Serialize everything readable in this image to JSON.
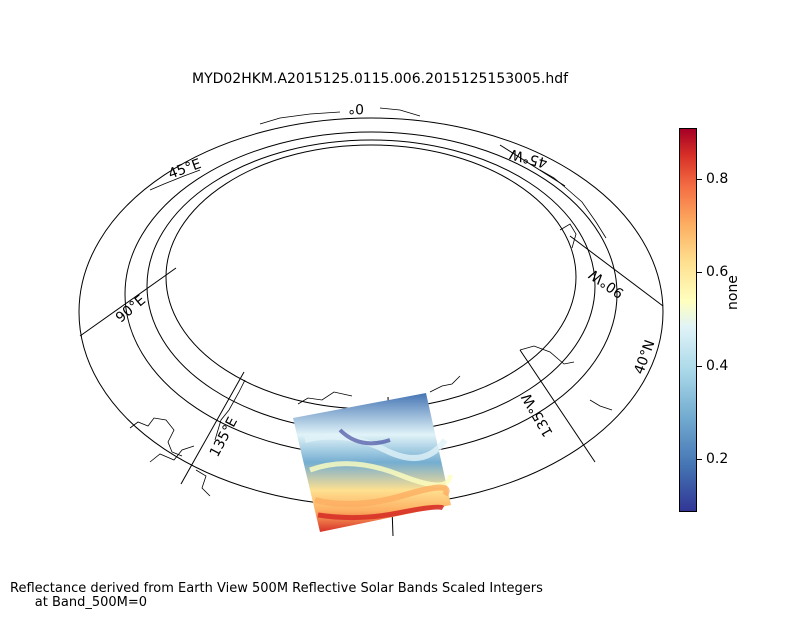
{
  "title": "MYD02HKM.A2015125.0115.006.2015125153005.hdf",
  "meridian_labels": [
    "0°",
    "45°E",
    "90°E",
    "135°E",
    "45°W",
    "90°W",
    "135°W"
  ],
  "parallel_label": "40°N",
  "colorbar": {
    "label": "none",
    "ticks": [
      "0.2",
      "0.4",
      "0.6",
      "0.8"
    ],
    "range": [
      0.08,
      0.9
    ],
    "colormap": "RdYlBu_r"
  },
  "caption": {
    "line1": "Reflectance derived from Earth View 500M Reflective Solar Bands Scaled Integers",
    "line2": "at Band_500M=0"
  }
}
